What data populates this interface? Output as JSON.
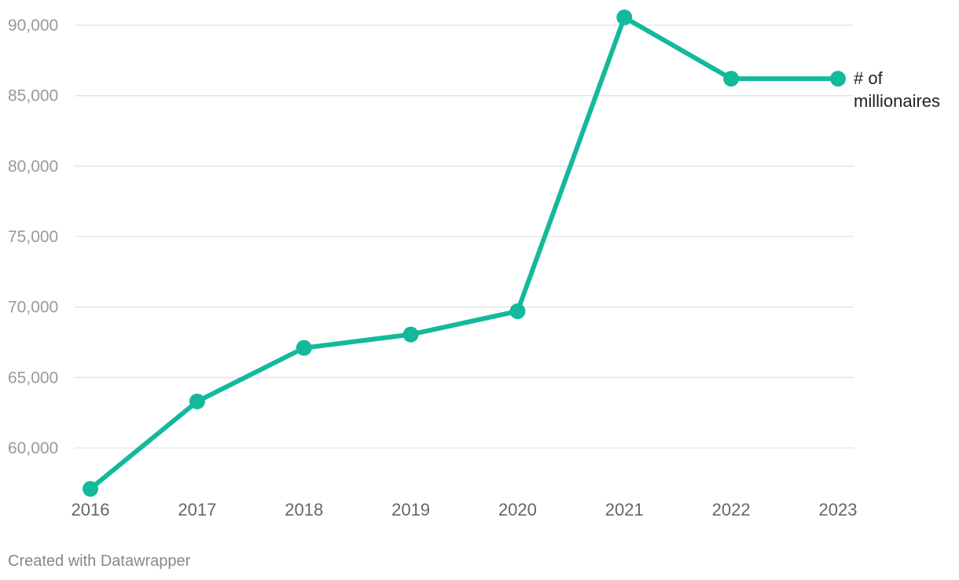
{
  "chart_data": {
    "type": "line",
    "x": [
      "2016",
      "2017",
      "2018",
      "2019",
      "2020",
      "2021",
      "2022",
      "2023"
    ],
    "series": [
      {
        "name": "# of millionaires",
        "values": [
          57100,
          63300,
          67100,
          68050,
          69700,
          90550,
          86200,
          86200
        ]
      }
    ],
    "yticks": [
      {
        "value": 60000,
        "label": "60,000"
      },
      {
        "value": 65000,
        "label": "65,000"
      },
      {
        "value": 70000,
        "label": "70,000"
      },
      {
        "value": 75000,
        "label": "75,000"
      },
      {
        "value": 80000,
        "label": "80,000"
      },
      {
        "value": 85000,
        "label": "85,000"
      },
      {
        "value": 90000,
        "label": "90,000"
      }
    ],
    "ylim": [
      57000,
      91000
    ],
    "grid": true,
    "legend": "inline-end-label",
    "color": "#13b99a"
  },
  "series_label_lines": [
    "# of",
    "millionaires"
  ],
  "footer": "Created with Datawrapper"
}
